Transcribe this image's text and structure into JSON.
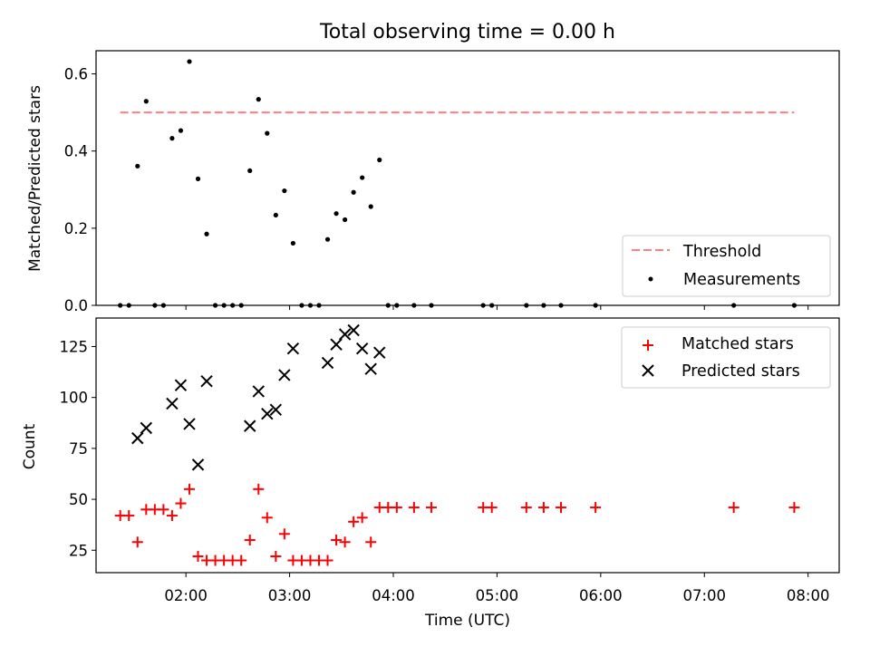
{
  "chart_data": [
    {
      "type": "scatter",
      "title": "Total observing time = 0.00 h",
      "ylabel": "Matched/Predicted stars",
      "xlabel": "",
      "x_unit": "time (UTC, hh:mm)",
      "ylim": [
        0,
        0.66
      ],
      "yticks": [
        "0.0",
        "0.2",
        "0.4",
        "0.6"
      ],
      "legend_position": "lower right",
      "series": [
        {
          "name": "Threshold",
          "kind": "line",
          "style": "dashed",
          "color": "#ff7f7f",
          "x": [
            "01:22",
            "07:52"
          ],
          "y": [
            0.5,
            0.5
          ]
        },
        {
          "name": "Measurements",
          "kind": "dot",
          "color": "#000000",
          "x": [
            "01:22",
            "01:27",
            "01:32",
            "01:37",
            "01:42",
            "01:47",
            "01:52",
            "01:57",
            "02:02",
            "02:07",
            "02:12",
            "02:17",
            "02:22",
            "02:27",
            "02:32",
            "02:37",
            "02:42",
            "02:47",
            "02:52",
            "02:57",
            "03:02",
            "03:07",
            "03:12",
            "03:17",
            "03:22",
            "03:27",
            "03:32",
            "03:37",
            "03:42",
            "03:47",
            "03:52",
            "03:57",
            "04:02",
            "04:12",
            "04:22",
            "04:52",
            "04:57",
            "05:17",
            "05:27",
            "05:37",
            "05:57",
            "07:17",
            "07:52"
          ],
          "y": [
            0.0,
            0.0,
            0.361,
            0.529,
            0.0,
            0.0,
            0.433,
            0.453,
            0.632,
            0.328,
            0.185,
            0.0,
            0.0,
            0.0,
            0.0,
            0.349,
            0.534,
            0.446,
            0.234,
            0.297,
            0.161,
            0.0,
            0.0,
            0.0,
            0.171,
            0.238,
            0.222,
            0.293,
            0.331,
            0.256,
            0.377,
            0.0,
            0.0,
            0.0,
            0.0,
            0.0,
            0.0,
            0.0,
            0.0,
            0.0,
            0.0,
            0.0,
            0.0
          ]
        }
      ]
    },
    {
      "type": "scatter",
      "title": "",
      "ylabel": "Count",
      "xlabel": "Time (UTC)",
      "x_unit": "time (UTC, hh:mm)",
      "ylim": [
        14,
        139
      ],
      "yticks": [
        "25",
        "50",
        "75",
        "100",
        "125"
      ],
      "xticks": [
        "02:00",
        "03:00",
        "04:00",
        "05:00",
        "06:00",
        "07:00",
        "08:00"
      ],
      "xlim": [
        "01:08",
        "08:18"
      ],
      "legend_position": "upper right",
      "series": [
        {
          "name": "Matched stars",
          "kind": "plus",
          "color": "#ff0000",
          "x": [
            "01:22",
            "01:27",
            "01:32",
            "01:37",
            "01:42",
            "01:47",
            "01:52",
            "01:57",
            "02:02",
            "02:07",
            "02:12",
            "02:17",
            "02:22",
            "02:27",
            "02:32",
            "02:37",
            "02:42",
            "02:47",
            "02:52",
            "02:57",
            "03:02",
            "03:07",
            "03:12",
            "03:17",
            "03:22",
            "03:27",
            "03:32",
            "03:37",
            "03:42",
            "03:47",
            "03:52",
            "03:57",
            "04:02",
            "04:12",
            "04:22",
            "04:52",
            "04:57",
            "05:17",
            "05:27",
            "05:37",
            "05:57",
            "07:17",
            "07:52"
          ],
          "y": [
            42,
            42,
            29,
            45,
            45,
            45,
            42,
            48,
            55,
            22,
            20,
            20,
            20,
            20,
            20,
            30,
            55,
            41,
            22,
            33,
            20,
            20,
            20,
            20,
            20,
            30,
            29,
            39,
            41,
            29,
            46,
            46,
            46,
            46,
            46,
            46,
            46,
            46,
            46,
            46,
            46,
            46,
            46
          ]
        },
        {
          "name": "Predicted stars",
          "kind": "x",
          "color": "#000000",
          "x": [
            "01:32",
            "01:37",
            "01:52",
            "01:57",
            "02:02",
            "02:07",
            "02:12",
            "02:37",
            "02:42",
            "02:47",
            "02:52",
            "02:57",
            "03:02",
            "03:22",
            "03:27",
            "03:32",
            "03:37",
            "03:42",
            "03:47",
            "03:52"
          ],
          "y": [
            80,
            85,
            97,
            106,
            87,
            67,
            108,
            86,
            103,
            92,
            94,
            111,
            124,
            117,
            126,
            131,
            133,
            124,
            114,
            122
          ]
        }
      ]
    }
  ]
}
